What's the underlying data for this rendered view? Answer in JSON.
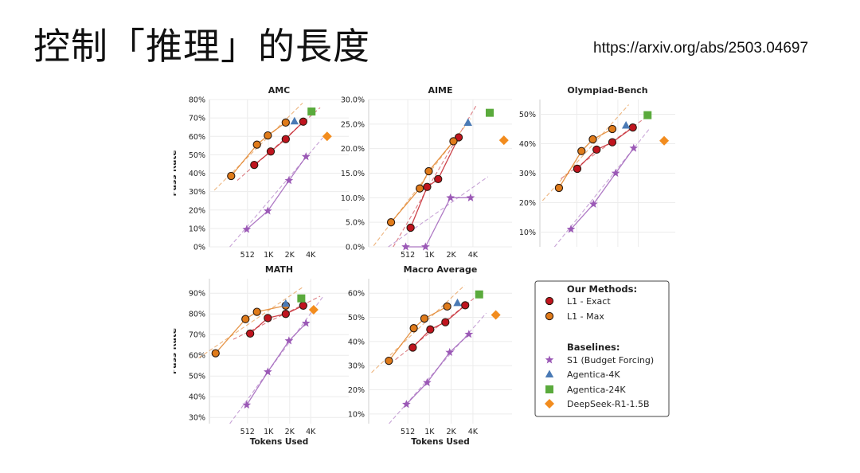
{
  "slide": {
    "title": "控制「推理」的長度",
    "url": "https://arxiv.org/abs/2503.04697"
  },
  "chart_data": [
    {
      "type": "scatter",
      "title": "AMC",
      "ylabel": "Pass Rate",
      "xlabel": "",
      "ylim": [
        0,
        80
      ],
      "yticks": [
        "0%",
        "10%",
        "20%",
        "30%",
        "40%",
        "50%",
        "60%",
        "70%",
        "80%"
      ],
      "xticks": [
        "512",
        "1K",
        "2K",
        "4K"
      ],
      "series": [
        {
          "name": "L1 - Exact",
          "x": [
            640,
            1100,
            1800,
            3200
          ],
          "y": [
            44.5,
            51.8,
            58.5,
            68
          ]
        },
        {
          "name": "L1 - Max",
          "x": [
            300,
            700,
            1000,
            1800
          ],
          "y": [
            38.5,
            55.5,
            60.5,
            67.5
          ]
        },
        {
          "name": "S1 (Budget Forcing)",
          "x": [
            500,
            1000,
            2000,
            3500
          ],
          "y": [
            9.5,
            19.5,
            36,
            49
          ]
        },
        {
          "name": "Agentica-4K",
          "x": [
            2400
          ],
          "y": [
            68.2
          ]
        },
        {
          "name": "Agentica-24K",
          "x": [
            4200
          ],
          "y": [
            73.5
          ]
        },
        {
          "name": "DeepSeek-R1-1.5B",
          "x": [
            7000
          ],
          "y": [
            60
          ]
        }
      ]
    },
    {
      "type": "scatter",
      "title": "AIME",
      "ylabel": "",
      "xlabel": "",
      "ylim": [
        0,
        30
      ],
      "yticks": [
        "0.0%",
        "5.0%",
        "10.0%",
        "15.0%",
        "20.0%",
        "25.0%",
        "30.0%"
      ],
      "xticks": [
        "512",
        "1K",
        "2K",
        "4K"
      ],
      "series": [
        {
          "name": "L1 - Exact",
          "x": [
            560,
            950,
            1350,
            2600
          ],
          "y": [
            3.9,
            12.2,
            13.8,
            22.3
          ]
        },
        {
          "name": "L1 - Max",
          "x": [
            300,
            750,
            1000,
            2200
          ],
          "y": [
            5,
            11.9,
            15.4,
            21.5
          ]
        },
        {
          "name": "S1 (Budget Forcing)",
          "x": [
            480,
            900,
            2000,
            3800
          ],
          "y": [
            0,
            0,
            10,
            10
          ]
        },
        {
          "name": "Agentica-4K",
          "x": [
            3500
          ],
          "y": [
            25.3
          ]
        },
        {
          "name": "Agentica-24K",
          "x": [
            7000
          ],
          "y": [
            27.3
          ]
        },
        {
          "name": "DeepSeek-R1-1.5B",
          "x": [
            11000
          ],
          "y": [
            21.7
          ]
        }
      ]
    },
    {
      "type": "scatter",
      "title": "Olympiad-Bench",
      "ylabel": "",
      "xlabel": "",
      "ylim": [
        5,
        55
      ],
      "yticks": [
        "10%",
        "20%",
        "30%",
        "40%",
        "50%"
      ],
      "xticks": [
        "512",
        "1K",
        "2K",
        "4K"
      ],
      "series": [
        {
          "name": "L1 - Exact",
          "x": [
            520,
            1000,
            1700,
            3400
          ],
          "y": [
            31.5,
            38,
            40.5,
            45.5
          ]
        },
        {
          "name": "L1 - Max",
          "x": [
            280,
            600,
            880,
            1700
          ],
          "y": [
            25,
            37.5,
            41.5,
            45
          ]
        },
        {
          "name": "S1 (Budget Forcing)",
          "x": [
            420,
            900,
            1900,
            3500
          ],
          "y": [
            11,
            19.5,
            30,
            38.5
          ]
        },
        {
          "name": "Agentica-4K",
          "x": [
            2700
          ],
          "y": [
            46.2
          ]
        },
        {
          "name": "Agentica-24K",
          "x": [
            5600
          ],
          "y": [
            49.7
          ]
        },
        {
          "name": "DeepSeek-R1-1.5B",
          "x": [
            9800
          ],
          "y": [
            41
          ]
        }
      ]
    },
    {
      "type": "scatter",
      "title": "MATH",
      "ylabel": "Pass Rate",
      "xlabel": "Tokens Used",
      "ylim": [
        27,
        97
      ],
      "yticks": [
        "30%",
        "40%",
        "50%",
        "60%",
        "70%",
        "80%",
        "90%"
      ],
      "xticks": [
        "512",
        "1K",
        "2K",
        "4K"
      ],
      "series": [
        {
          "name": "L1 - Exact",
          "x": [
            560,
            1000,
            1800,
            3200
          ],
          "y": [
            70.5,
            78,
            80,
            84
          ]
        },
        {
          "name": "L1 - Max",
          "x": [
            180,
            480,
            700,
            1800
          ],
          "y": [
            61,
            77.5,
            81,
            84
          ]
        },
        {
          "name": "S1 (Budget Forcing)",
          "x": [
            500,
            1000,
            2000,
            3500
          ],
          "y": [
            36,
            52,
            67,
            75.5
          ]
        },
        {
          "name": "Agentica-4K",
          "x": [
            1800
          ],
          "y": [
            85
          ]
        },
        {
          "name": "Agentica-24K",
          "x": [
            3000
          ],
          "y": [
            87.5
          ]
        },
        {
          "name": "DeepSeek-R1-1.5B",
          "x": [
            4500
          ],
          "y": [
            82
          ]
        }
      ]
    },
    {
      "type": "scatter",
      "title": "Macro Average",
      "ylabel": "",
      "xlabel": "Tokens Used",
      "ylim": [
        6,
        66
      ],
      "yticks": [
        "10%",
        "20%",
        "30%",
        "40%",
        "50%",
        "60%"
      ],
      "xticks": [
        "512",
        "1K",
        "2K",
        "4K"
      ],
      "series": [
        {
          "name": "L1 - Exact",
          "x": [
            600,
            1050,
            1700,
            3200
          ],
          "y": [
            37.5,
            45,
            48,
            55
          ]
        },
        {
          "name": "L1 - Max",
          "x": [
            280,
            620,
            870,
            1800
          ],
          "y": [
            32,
            45.5,
            49.5,
            54.5
          ]
        },
        {
          "name": "S1 (Budget Forcing)",
          "x": [
            490,
            950,
            1950,
            3600
          ],
          "y": [
            14,
            23,
            35.5,
            43
          ]
        },
        {
          "name": "Agentica-4K",
          "x": [
            2500
          ],
          "y": [
            56
          ]
        },
        {
          "name": "Agentica-24K",
          "x": [
            5000
          ],
          "y": [
            59.5
          ]
        },
        {
          "name": "DeepSeek-R1-1.5B",
          "x": [
            8500
          ],
          "y": [
            51
          ]
        }
      ]
    }
  ],
  "legend": {
    "methods_title": "Our Methods:",
    "baselines_title": "Baselines:",
    "entries": [
      {
        "label": "L1 - Exact",
        "marker": "circle",
        "color": "#c0141e",
        "group": "methods"
      },
      {
        "label": "L1 - Max",
        "marker": "circle",
        "color": "#e07b1a",
        "group": "methods"
      },
      {
        "label": "S1 (Budget Forcing)",
        "marker": "star",
        "color": "#9b59b6",
        "group": "baselines"
      },
      {
        "label": "Agentica-4K",
        "marker": "triangle",
        "color": "#4a7ab5",
        "group": "baselines"
      },
      {
        "label": "Agentica-24K",
        "marker": "square",
        "color": "#5aaa3c",
        "group": "baselines"
      },
      {
        "label": "DeepSeek-R1-1.5B",
        "marker": "diamond",
        "color": "#f28c1e",
        "group": "baselines"
      }
    ]
  }
}
